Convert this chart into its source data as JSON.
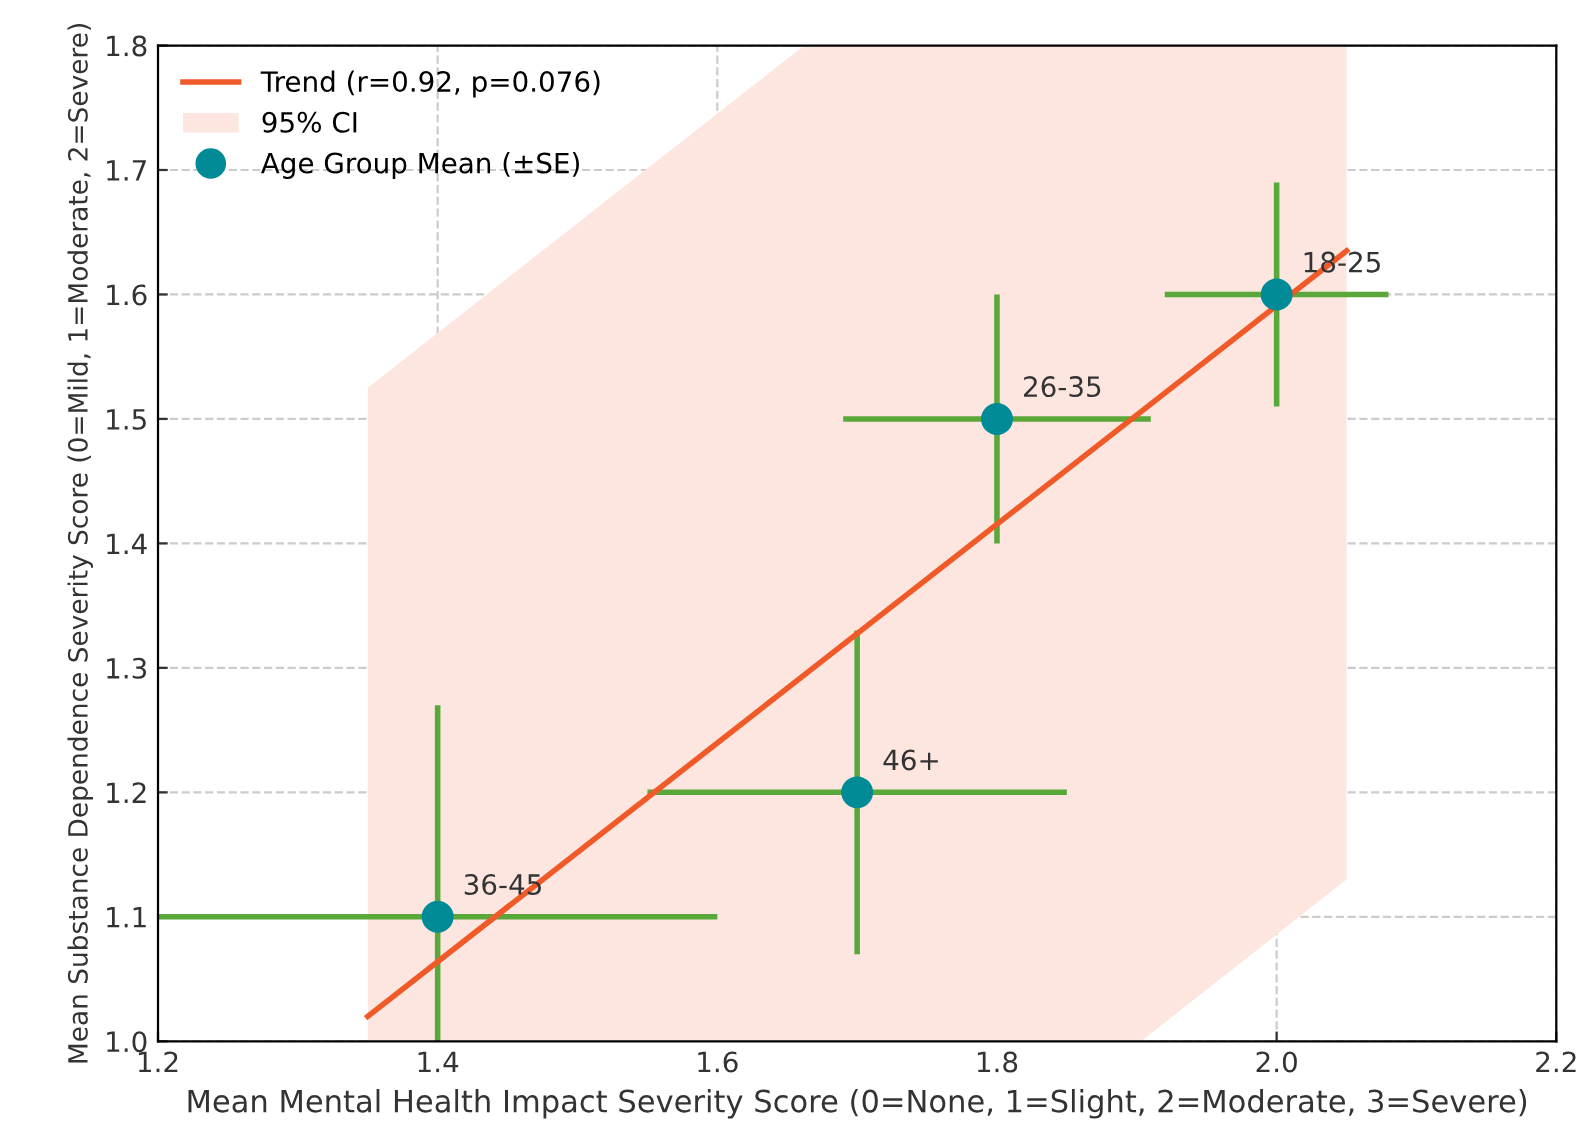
{
  "chart_data": {
    "type": "scatter",
    "xlabel": "Mean Mental Health Impact Severity Score (0=None, 1=Slight, 2=Moderate, 3=Severe)",
    "ylabel": "Mean Substance Dependence Severity Score (0=Mild, 1=Moderate, 2=Severe)",
    "xlim": [
      1.2,
      2.2
    ],
    "ylim": [
      1.0,
      1.8
    ],
    "xticks": [
      1.2,
      1.4,
      1.6,
      1.8,
      {
        "value": 2.0,
        "label": "2.0"
      },
      2.2
    ],
    "yticks": [
      {
        "value": 1.0,
        "label": "1.0"
      },
      1.1,
      1.2,
      1.3,
      1.4,
      1.5,
      1.6,
      1.7,
      1.8
    ],
    "grid": true,
    "legend": "top left",
    "series": [
      {
        "type": "line",
        "name": "Trend (r=0.92, p=0.076)",
        "color": "#f05a28",
        "x": [
          1.35,
          2.05
        ],
        "values": [
          1.02,
          1.635
        ],
        "marker": "none",
        "line_style": "solid"
      },
      {
        "type": "area",
        "name": "95% CI",
        "color": "#fde6df",
        "x": [
          1.35,
          1.662,
          1.903,
          2.05
        ],
        "values": [
          null,
          null,
          null,
          null
        ],
        "lower": [
          1.0,
          1.0,
          1.0,
          1.13
        ],
        "upper": [
          1.525,
          1.8,
          1.8,
          1.8
        ]
      },
      {
        "name": "Age Group Mean (±SE)",
        "color": "#008b96",
        "marker": "circle",
        "x": [
          1.4,
          1.7,
          1.8,
          2.0
        ],
        "values": [
          1.1,
          1.2,
          1.5,
          1.6
        ],
        "errors": [
          [
            1.0,
            1.27
          ],
          [
            1.07,
            1.33
          ],
          [
            1.4,
            1.6
          ],
          [
            1.51,
            1.69
          ]
        ],
        "xerrors": [
          [
            1.2,
            1.6
          ],
          [
            1.55,
            1.85
          ],
          [
            1.69,
            1.91
          ],
          [
            1.92,
            2.08
          ]
        ],
        "value_labels": [
          "36-45",
          "46+",
          "26-35",
          "18-25"
        ]
      }
    ]
  }
}
